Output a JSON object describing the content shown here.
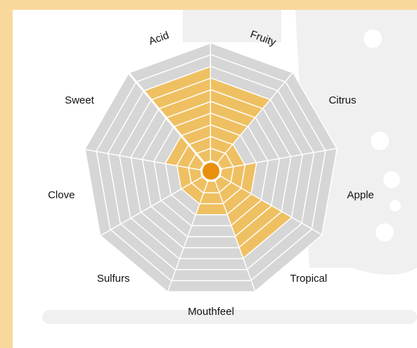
{
  "chart_data": {
    "type": "radar",
    "categories": [
      "Acid",
      "Fruity",
      "Citrus",
      "Apple",
      "Tropical",
      "Mouthfeel",
      "Sulfurs",
      "Clove",
      "Sweet"
    ],
    "values": [
      8,
      7,
      2,
      3,
      7,
      3,
      2,
      2,
      3
    ],
    "rlim": [
      0,
      10
    ],
    "color": "#efc062"
  }
}
